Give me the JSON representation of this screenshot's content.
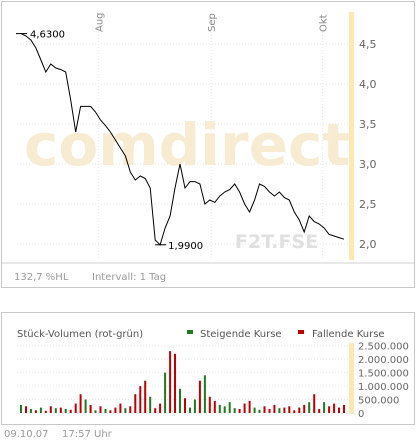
{
  "chart_data": [
    {
      "type": "line",
      "title": "",
      "watermark": "comdirect",
      "source_label": "F2T.FSE",
      "x_ticks": [
        "Aug",
        "Sep",
        "Okt"
      ],
      "y_ticks": [
        "4,5",
        "4,0",
        "3,5",
        "3,0",
        "2,5",
        "2,0"
      ],
      "ylim": [
        1.8,
        4.9
      ],
      "high_label": "4,6300",
      "low_label": "1,9900",
      "values": [
        4.63,
        4.6,
        4.55,
        4.45,
        4.3,
        4.15,
        4.25,
        4.2,
        4.18,
        4.15,
        3.8,
        3.4,
        3.72,
        3.72,
        3.72,
        3.65,
        3.55,
        3.48,
        3.4,
        3.3,
        3.2,
        3.1,
        2.9,
        2.8,
        2.85,
        2.82,
        2.7,
        2.05,
        1.99,
        2.2,
        2.35,
        2.7,
        3.0,
        2.7,
        2.78,
        2.78,
        2.75,
        2.5,
        2.55,
        2.52,
        2.6,
        2.65,
        2.68,
        2.75,
        2.65,
        2.5,
        2.4,
        2.55,
        2.75,
        2.72,
        2.65,
        2.6,
        2.65,
        2.58,
        2.55,
        2.4,
        2.3,
        2.15,
        2.35,
        2.28,
        2.25,
        2.2,
        2.12,
        2.1,
        2.08,
        2.06
      ],
      "footer": {
        "volatility": "132,7 %HL",
        "interval": "Intervall: 1 Tag"
      },
      "grid": true
    },
    {
      "type": "bar",
      "title": "Stück-Volumen (rot-grün)",
      "legend": [
        {
          "name": "Steigende Kurse",
          "color": "#1e7a1e"
        },
        {
          "name": "Fallende Kurse",
          "color": "#c00000"
        }
      ],
      "y_ticks": [
        "2.500.000",
        "2.000.000",
        "1.500.000",
        "1.000.000",
        "500.000",
        "0"
      ],
      "ylim": [
        0,
        2600000
      ],
      "volumes": [
        300000,
        250000,
        150000,
        100000,
        200000,
        80000,
        250000,
        180000,
        200000,
        150000,
        120000,
        350000,
        700000,
        500000,
        300000,
        100000,
        250000,
        150000,
        100000,
        200000,
        350000,
        180000,
        250000,
        700000,
        1000000,
        1200000,
        600000,
        180000,
        350000,
        1500000,
        2300000,
        2200000,
        900000,
        550000,
        200000,
        500000,
        1200000,
        1400000,
        600000,
        450000,
        300000,
        250000,
        400000,
        180000,
        150000,
        350000,
        450000,
        200000,
        120000,
        250000,
        150000,
        300000,
        180000,
        200000,
        250000,
        100000,
        200000,
        300000,
        400000,
        700000,
        150000,
        400000,
        250000,
        350000,
        200000,
        300000
      ],
      "directions": [
        "up",
        "down",
        "up",
        "down",
        "up",
        "down",
        "down",
        "up",
        "down",
        "up",
        "down",
        "down",
        "down",
        "up",
        "down",
        "up",
        "down",
        "up",
        "down",
        "down",
        "down",
        "up",
        "down",
        "down",
        "down",
        "down",
        "up",
        "down",
        "down",
        "up",
        "down",
        "down",
        "up",
        "down",
        "up",
        "up",
        "down",
        "up",
        "down",
        "down",
        "up",
        "up",
        "up",
        "up",
        "down",
        "down",
        "down",
        "up",
        "up",
        "down",
        "down",
        "down",
        "up",
        "down",
        "down",
        "down",
        "down",
        "down",
        "up",
        "down",
        "down",
        "up",
        "down",
        "down",
        "down",
        "down"
      ]
    }
  ],
  "footer": {
    "date": "09.10.07",
    "time": "17:57 Uhr"
  },
  "colors": {
    "line": "#000000",
    "highlight_band": "#fde8b4",
    "grid": "#e0e0e0",
    "watermark": "#f4dfa8"
  }
}
